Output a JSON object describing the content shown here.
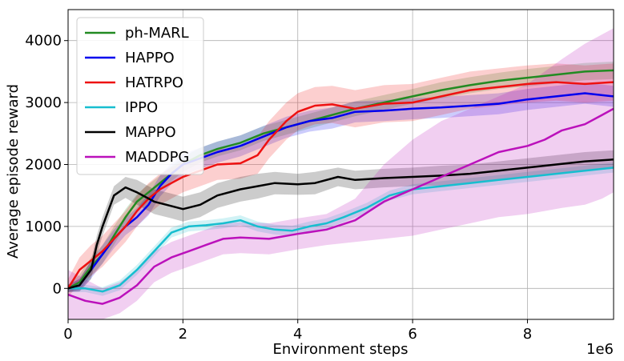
{
  "chart_data": {
    "type": "line",
    "title": "",
    "xlabel": "Environment steps",
    "ylabel": "Average episode reward",
    "x_offset_label": "1e6",
    "xlim": [
      0,
      9.5
    ],
    "ylim": [
      -500,
      4500
    ],
    "xticks": [
      0,
      2,
      4,
      6,
      8
    ],
    "xtick_labels": [
      "0",
      "2",
      "4",
      "6",
      "8"
    ],
    "yticks": [
      0,
      1000,
      2000,
      3000,
      4000
    ],
    "ytick_labels": [
      "0",
      "1000",
      "2000",
      "3000",
      "4000"
    ],
    "grid": true,
    "legend_position": "top-left",
    "series": [
      {
        "name": "ph-MARL",
        "color": "#228B22",
        "x": [
          0,
          0.2,
          0.4,
          0.6,
          0.8,
          1.0,
          1.2,
          1.4,
          1.6,
          1.8,
          2.0,
          2.3,
          2.6,
          3.0,
          3.4,
          3.8,
          4.2,
          4.6,
          5.0,
          5.5,
          6.0,
          6.5,
          7.0,
          7.5,
          8.0,
          8.5,
          9.0,
          9.5
        ],
        "y": [
          0,
          100,
          350,
          550,
          850,
          1150,
          1400,
          1550,
          1700,
          1850,
          2000,
          2150,
          2250,
          2350,
          2500,
          2600,
          2700,
          2800,
          2900,
          3000,
          3100,
          3200,
          3280,
          3350,
          3400,
          3450,
          3500,
          3520
        ],
        "band_upper": [
          60,
          220,
          500,
          700,
          1000,
          1280,
          1520,
          1680,
          1820,
          1970,
          2120,
          2270,
          2370,
          2470,
          2620,
          2720,
          2820,
          2920,
          3020,
          3120,
          3220,
          3330,
          3410,
          3480,
          3540,
          3590,
          3640,
          3660
        ],
        "band_lower": [
          -60,
          -20,
          200,
          400,
          700,
          1020,
          1280,
          1420,
          1580,
          1730,
          1880,
          2030,
          2130,
          2230,
          2380,
          2480,
          2580,
          2680,
          2780,
          2880,
          2980,
          3070,
          3150,
          3220,
          3260,
          3310,
          3360,
          3380
        ]
      },
      {
        "name": "HAPPO",
        "color": "#0000EE",
        "x": [
          0,
          0.2,
          0.4,
          0.6,
          0.8,
          1.0,
          1.2,
          1.4,
          1.6,
          1.8,
          2.0,
          2.3,
          2.6,
          3.0,
          3.4,
          3.8,
          4.2,
          4.6,
          5.0,
          5.5,
          6.0,
          6.5,
          7.0,
          7.5,
          8.0,
          8.5,
          9.0,
          9.5
        ],
        "y": [
          0,
          50,
          300,
          550,
          800,
          1000,
          1150,
          1350,
          1650,
          1850,
          2000,
          2100,
          2200,
          2300,
          2450,
          2600,
          2700,
          2750,
          2850,
          2870,
          2900,
          2920,
          2950,
          2980,
          3050,
          3100,
          3150,
          3100
        ],
        "band_upper": [
          60,
          160,
          440,
          700,
          950,
          1140,
          1300,
          1520,
          1820,
          2020,
          2170,
          2270,
          2370,
          2470,
          2620,
          2770,
          2870,
          2920,
          3020,
          3040,
          3070,
          3090,
          3120,
          3150,
          3220,
          3270,
          3320,
          3270
        ],
        "band_lower": [
          -60,
          -40,
          160,
          400,
          650,
          860,
          1000,
          1180,
          1480,
          1680,
          1830,
          1930,
          2030,
          2130,
          2280,
          2430,
          2530,
          2580,
          2680,
          2700,
          2730,
          2750,
          2780,
          2810,
          2880,
          2930,
          2980,
          2930
        ]
      },
      {
        "name": "HATRPO",
        "color": "#EE1111",
        "x": [
          0,
          0.2,
          0.4,
          0.6,
          0.8,
          1.0,
          1.2,
          1.4,
          1.6,
          1.8,
          2.0,
          2.3,
          2.6,
          3.0,
          3.3,
          3.5,
          3.8,
          4.0,
          4.3,
          4.6,
          5.0,
          5.5,
          6.0,
          6.5,
          7.0,
          7.5,
          8.0,
          8.5,
          9.0,
          9.5
        ],
        "y": [
          0,
          300,
          450,
          600,
          800,
          1000,
          1250,
          1450,
          1600,
          1700,
          1800,
          1900,
          2000,
          2020,
          2150,
          2400,
          2700,
          2850,
          2950,
          2970,
          2900,
          2980,
          3000,
          3100,
          3200,
          3250,
          3300,
          3330,
          3300,
          3330
        ],
        "band_upper": [
          150,
          500,
          700,
          850,
          1050,
          1250,
          1500,
          1700,
          1850,
          1950,
          2050,
          2150,
          2250,
          2270,
          2450,
          2700,
          3000,
          3150,
          3250,
          3270,
          3200,
          3280,
          3300,
          3400,
          3500,
          3550,
          3600,
          3630,
          3600,
          3630
        ],
        "band_lower": [
          -150,
          100,
          200,
          350,
          550,
          750,
          1000,
          1200,
          1350,
          1450,
          1550,
          1650,
          1750,
          1770,
          1850,
          2100,
          2400,
          2550,
          2650,
          2670,
          2600,
          2680,
          2700,
          2800,
          2900,
          2950,
          3000,
          3030,
          3000,
          3030
        ]
      },
      {
        "name": "IPPO",
        "color": "#17BECF",
        "x": [
          0,
          0.3,
          0.6,
          0.9,
          1.2,
          1.5,
          1.8,
          2.1,
          2.4,
          2.7,
          3.0,
          3.3,
          3.6,
          3.9,
          4.2,
          4.5,
          4.8,
          5.2,
          5.6,
          6.0,
          6.5,
          7.0,
          7.5,
          8.0,
          8.5,
          9.0,
          9.5
        ],
        "y": [
          0,
          0,
          -50,
          50,
          300,
          600,
          900,
          1000,
          1020,
          1050,
          1100,
          1000,
          950,
          930,
          1000,
          1050,
          1150,
          1300,
          1500,
          1600,
          1650,
          1700,
          1750,
          1800,
          1850,
          1900,
          1950
        ],
        "band_upper": [
          60,
          60,
          20,
          130,
          380,
          680,
          980,
          1080,
          1100,
          1130,
          1180,
          1080,
          1030,
          1010,
          1080,
          1130,
          1230,
          1380,
          1580,
          1680,
          1730,
          1780,
          1830,
          1880,
          1930,
          1980,
          2030
        ],
        "band_lower": [
          -60,
          -60,
          -120,
          -30,
          220,
          520,
          820,
          920,
          940,
          970,
          1020,
          920,
          870,
          850,
          920,
          970,
          1070,
          1220,
          1420,
          1520,
          1570,
          1620,
          1670,
          1720,
          1770,
          1820,
          1870
        ]
      },
      {
        "name": "MAPPO",
        "color": "#000000",
        "x": [
          0,
          0.2,
          0.4,
          0.5,
          0.6,
          0.8,
          1.0,
          1.2,
          1.5,
          1.8,
          2.0,
          2.3,
          2.6,
          3.0,
          3.3,
          3.6,
          4.0,
          4.3,
          4.7,
          5.0,
          5.5,
          6.0,
          6.5,
          7.0,
          7.5,
          8.0,
          8.5,
          9.0,
          9.5
        ],
        "y": [
          0,
          50,
          300,
          700,
          1000,
          1500,
          1630,
          1550,
          1400,
          1330,
          1280,
          1350,
          1500,
          1600,
          1650,
          1700,
          1680,
          1700,
          1800,
          1750,
          1780,
          1800,
          1820,
          1850,
          1900,
          1950,
          2000,
          2050,
          2080
        ],
        "band_upper": [
          60,
          150,
          450,
          850,
          1150,
          1650,
          1800,
          1750,
          1600,
          1530,
          1480,
          1550,
          1700,
          1800,
          1850,
          1880,
          1850,
          1880,
          1950,
          1900,
          1930,
          1950,
          1980,
          2000,
          2050,
          2100,
          2150,
          2200,
          2230
        ],
        "band_lower": [
          -60,
          -50,
          150,
          550,
          850,
          1350,
          1460,
          1350,
          1200,
          1130,
          1080,
          1150,
          1300,
          1400,
          1450,
          1520,
          1510,
          1520,
          1650,
          1600,
          1630,
          1650,
          1660,
          1700,
          1750,
          1800,
          1850,
          1900,
          1930
        ]
      },
      {
        "name": "MADDPG",
        "color": "#BB11BB",
        "x": [
          0,
          0.3,
          0.6,
          0.9,
          1.2,
          1.5,
          1.8,
          2.1,
          2.4,
          2.7,
          3.0,
          3.5,
          4.0,
          4.5,
          5.0,
          5.5,
          6.0,
          6.5,
          7.0,
          7.5,
          8.0,
          8.3,
          8.6,
          9.0,
          9.3,
          9.5
        ],
        "y": [
          -100,
          -200,
          -250,
          -150,
          50,
          350,
          500,
          600,
          700,
          800,
          820,
          800,
          880,
          950,
          1100,
          1400,
          1600,
          1800,
          2000,
          2200,
          2300,
          2400,
          2550,
          2650,
          2800,
          2900
        ],
        "band_upper": [
          300,
          150,
          0,
          100,
          300,
          600,
          750,
          850,
          950,
          1050,
          1070,
          1050,
          1130,
          1200,
          1450,
          2000,
          2400,
          2700,
          2900,
          3100,
          3300,
          3500,
          3700,
          3950,
          4100,
          4200
        ],
        "band_lower": [
          -500,
          -500,
          -500,
          -400,
          -200,
          100,
          250,
          350,
          450,
          550,
          570,
          550,
          630,
          700,
          750,
          800,
          850,
          950,
          1050,
          1150,
          1200,
          1250,
          1300,
          1350,
          1450,
          1550
        ]
      }
    ]
  }
}
